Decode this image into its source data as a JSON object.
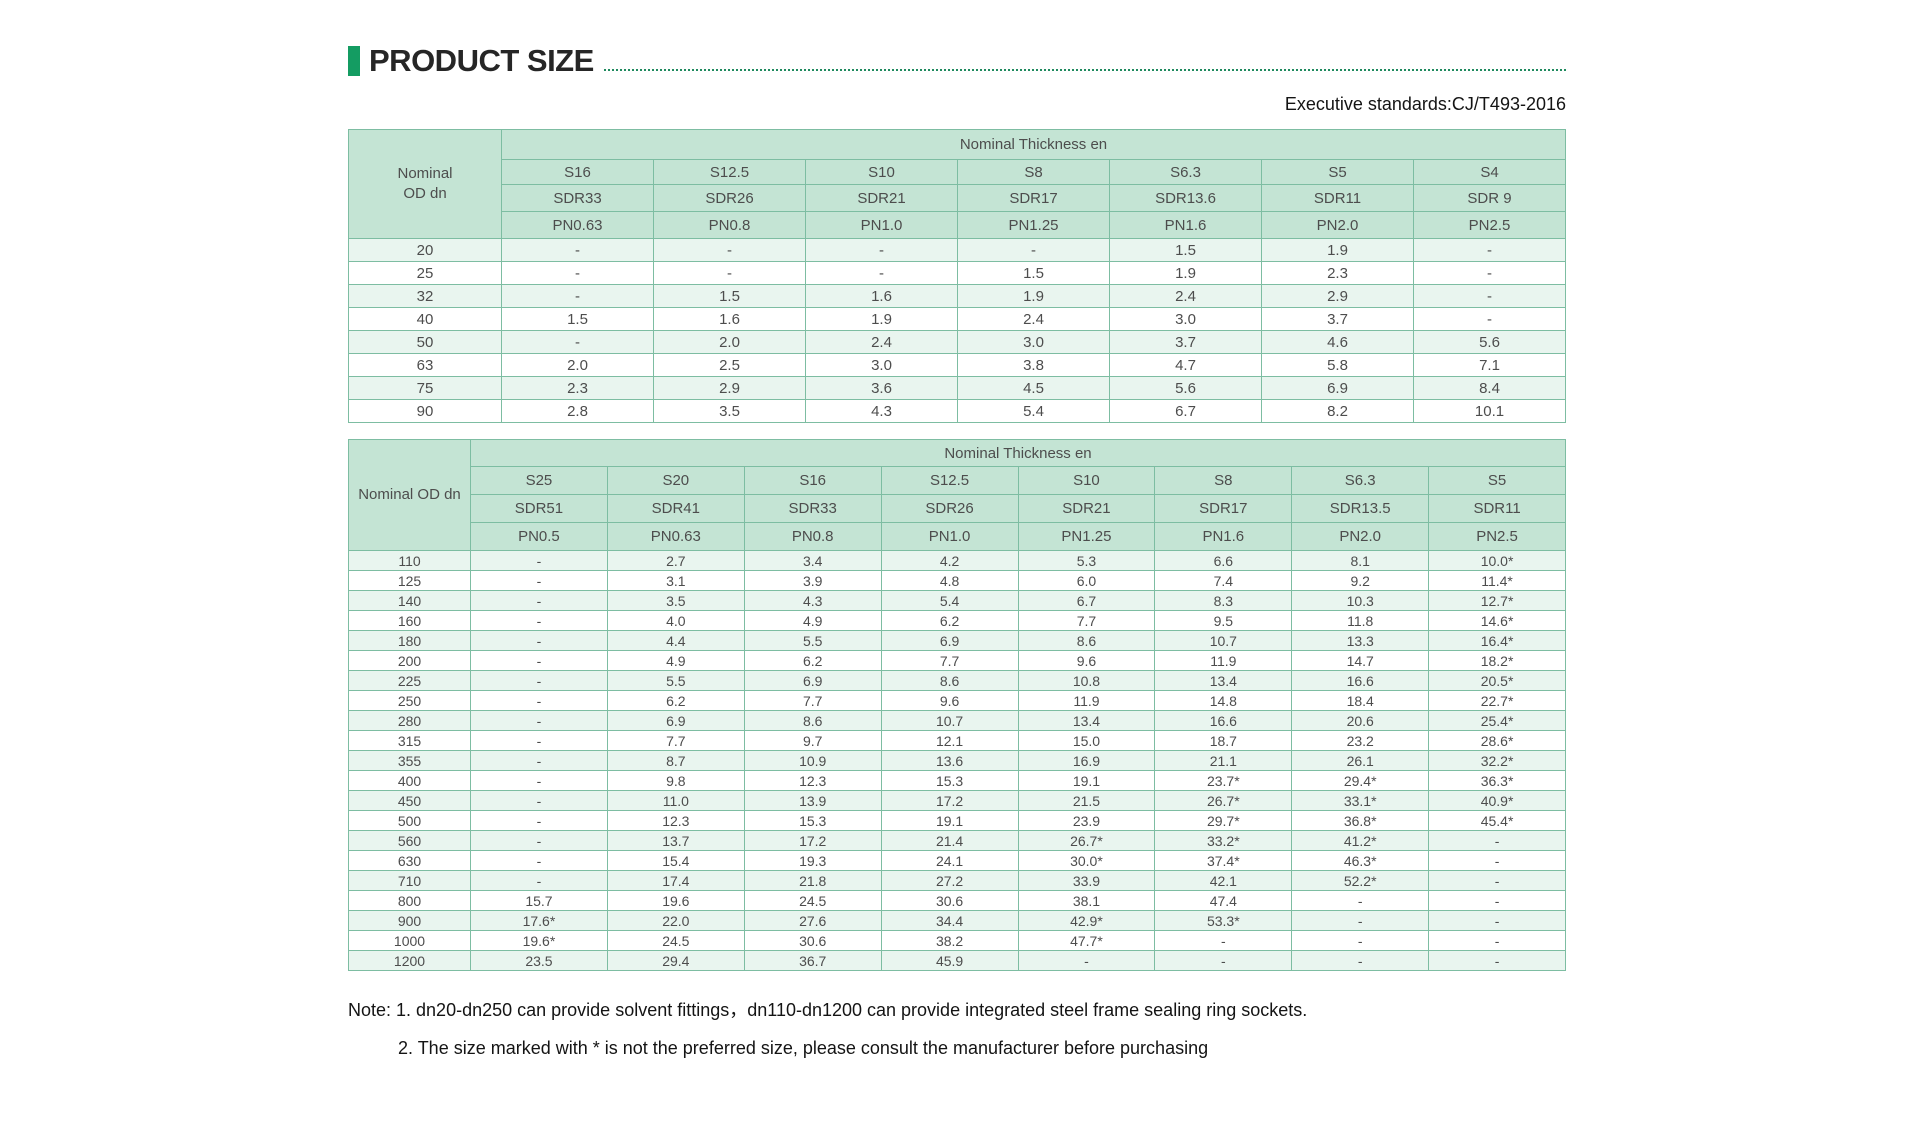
{
  "header": {
    "title": "PRODUCT SIZE",
    "standard": "Executive standards:CJ/T493-2016"
  },
  "accent_colors": {
    "bullet_green": "#149c62",
    "table_border": "#7dbda2",
    "header_bg": "#c4e4d4",
    "stripe_bg": "#e9f5ef"
  },
  "table1": {
    "corner_label": "Nominal\nOD dn",
    "group_header": "Nominal Thickness en",
    "s_labels": [
      "S16",
      "S12.5",
      "S10",
      "S8",
      "S6.3",
      "S5",
      "S4"
    ],
    "sdr_labels": [
      "SDR33",
      "SDR26",
      "SDR21",
      "SDR17",
      "SDR13.6",
      "SDR11",
      "SDR 9"
    ],
    "pn_labels": [
      "PN0.63",
      "PN0.8",
      "PN1.0",
      "PN1.25",
      "PN1.6",
      "PN2.0",
      "PN2.5"
    ],
    "rows": [
      {
        "dn": "20",
        "values": [
          "-",
          "-",
          "-",
          "-",
          "1.5",
          "1.9",
          "-"
        ]
      },
      {
        "dn": "25",
        "values": [
          "-",
          "-",
          "-",
          "1.5",
          "1.9",
          "2.3",
          "-"
        ]
      },
      {
        "dn": "32",
        "values": [
          "-",
          "1.5",
          "1.6",
          "1.9",
          "2.4",
          "2.9",
          "-"
        ]
      },
      {
        "dn": "40",
        "values": [
          "1.5",
          "1.6",
          "1.9",
          "2.4",
          "3.0",
          "3.7",
          "-"
        ]
      },
      {
        "dn": "50",
        "values": [
          "-",
          "2.0",
          "2.4",
          "3.0",
          "3.7",
          "4.6",
          "5.6"
        ]
      },
      {
        "dn": "63",
        "values": [
          "2.0",
          "2.5",
          "3.0",
          "3.8",
          "4.7",
          "5.8",
          "7.1"
        ]
      },
      {
        "dn": "75",
        "values": [
          "2.3",
          "2.9",
          "3.6",
          "4.5",
          "5.6",
          "6.9",
          "8.4"
        ]
      },
      {
        "dn": "90",
        "values": [
          "2.8",
          "3.5",
          "4.3",
          "5.4",
          "6.7",
          "8.2",
          "10.1"
        ]
      }
    ]
  },
  "table2": {
    "corner_label": "Nominal OD dn",
    "group_header": "Nominal Thickness en",
    "s_labels": [
      "S25",
      "S20",
      "S16",
      "S12.5",
      "S10",
      "S8",
      "S6.3",
      "S5"
    ],
    "sdr_labels": [
      "SDR51",
      "SDR41",
      "SDR33",
      "SDR26",
      "SDR21",
      "SDR17",
      "SDR13.5",
      "SDR11"
    ],
    "pn_labels": [
      "PN0.5",
      "PN0.63",
      "PN0.8",
      "PN1.0",
      "PN1.25",
      "PN1.6",
      "PN2.0",
      "PN2.5"
    ],
    "rows": [
      {
        "dn": "110",
        "values": [
          "-",
          "2.7",
          "3.4",
          "4.2",
          "5.3",
          "6.6",
          "8.1",
          "10.0*"
        ]
      },
      {
        "dn": "125",
        "values": [
          "-",
          "3.1",
          "3.9",
          "4.8",
          "6.0",
          "7.4",
          "9.2",
          "11.4*"
        ]
      },
      {
        "dn": "140",
        "values": [
          "-",
          "3.5",
          "4.3",
          "5.4",
          "6.7",
          "8.3",
          "10.3",
          "12.7*"
        ]
      },
      {
        "dn": "160",
        "values": [
          "-",
          "4.0",
          "4.9",
          "6.2",
          "7.7",
          "9.5",
          "11.8",
          "14.6*"
        ]
      },
      {
        "dn": "180",
        "values": [
          "-",
          "4.4",
          "5.5",
          "6.9",
          "8.6",
          "10.7",
          "13.3",
          "16.4*"
        ]
      },
      {
        "dn": "200",
        "values": [
          "-",
          "4.9",
          "6.2",
          "7.7",
          "9.6",
          "11.9",
          "14.7",
          "18.2*"
        ]
      },
      {
        "dn": "225",
        "values": [
          "-",
          "5.5",
          "6.9",
          "8.6",
          "10.8",
          "13.4",
          "16.6",
          "20.5*"
        ]
      },
      {
        "dn": "250",
        "values": [
          "-",
          "6.2",
          "7.7",
          "9.6",
          "11.9",
          "14.8",
          "18.4",
          "22.7*"
        ]
      },
      {
        "dn": "280",
        "values": [
          "-",
          "6.9",
          "8.6",
          "10.7",
          "13.4",
          "16.6",
          "20.6",
          "25.4*"
        ]
      },
      {
        "dn": "315",
        "values": [
          "-",
          "7.7",
          "9.7",
          "12.1",
          "15.0",
          "18.7",
          "23.2",
          "28.6*"
        ]
      },
      {
        "dn": "355",
        "values": [
          "-",
          "8.7",
          "10.9",
          "13.6",
          "16.9",
          "21.1",
          "26.1",
          "32.2*"
        ]
      },
      {
        "dn": "400",
        "values": [
          "-",
          "9.8",
          "12.3",
          "15.3",
          "19.1",
          "23.7*",
          "29.4*",
          "36.3*"
        ]
      },
      {
        "dn": "450",
        "values": [
          "-",
          "11.0",
          "13.9",
          "17.2",
          "21.5",
          "26.7*",
          "33.1*",
          "40.9*"
        ]
      },
      {
        "dn": "500",
        "values": [
          "-",
          "12.3",
          "15.3",
          "19.1",
          "23.9",
          "29.7*",
          "36.8*",
          "45.4*"
        ]
      },
      {
        "dn": "560",
        "values": [
          "-",
          "13.7",
          "17.2",
          "21.4",
          "26.7*",
          "33.2*",
          "41.2*",
          "-"
        ]
      },
      {
        "dn": "630",
        "values": [
          "-",
          "15.4",
          "19.3",
          "24.1",
          "30.0*",
          "37.4*",
          "46.3*",
          "-"
        ]
      },
      {
        "dn": "710",
        "values": [
          "-",
          "17.4",
          "21.8",
          "27.2",
          "33.9",
          "42.1",
          "52.2*",
          "-"
        ]
      },
      {
        "dn": "800",
        "values": [
          "15.7",
          "19.6",
          "24.5",
          "30.6",
          "38.1",
          "47.4",
          "-",
          "-"
        ]
      },
      {
        "dn": "900",
        "values": [
          "17.6*",
          "22.0",
          "27.6",
          "34.4",
          "42.9*",
          "53.3*",
          "-",
          "-"
        ]
      },
      {
        "dn": "1000",
        "values": [
          "19.6*",
          "24.5",
          "30.6",
          "38.2",
          "47.7*",
          "-",
          "-",
          "-"
        ]
      },
      {
        "dn": "1200",
        "values": [
          "23.5",
          "29.4",
          "36.7",
          "45.9",
          "-",
          "-",
          "-",
          "-"
        ]
      }
    ]
  },
  "notes": [
    "Note: 1. dn20-dn250 can provide solvent fittings，dn110-dn1200 can provide integrated steel frame sealing ring sockets.",
    "2. The size marked with * is not the preferred size, please consult the manufacturer before purchasing"
  ]
}
